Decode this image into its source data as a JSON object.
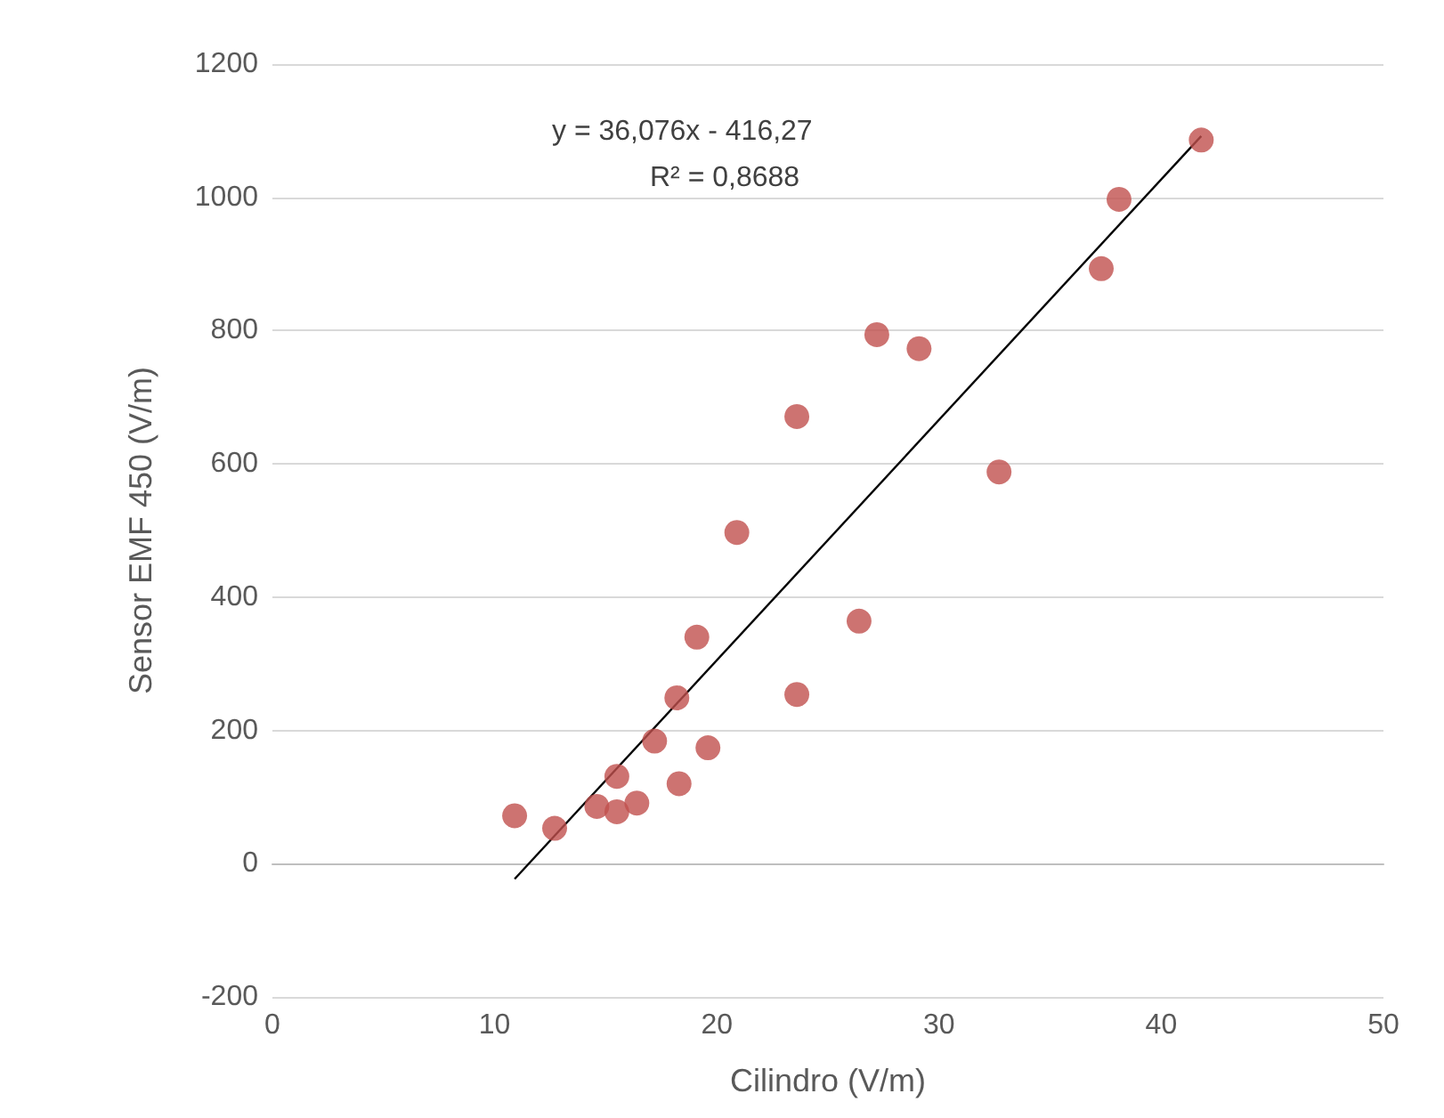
{
  "chart_data": {
    "type": "scatter",
    "xlabel": "Cilindro (V/m)",
    "ylabel": "Sensor EMF 450 (V/m)",
    "annotations": [
      "y = 36,076x - 416,27",
      "R² = 0,8688"
    ],
    "xlim": [
      0,
      50
    ],
    "xticks": [
      0,
      10,
      20,
      30,
      40,
      50
    ],
    "ylim": [
      -200,
      1200
    ],
    "yticks": [
      -200,
      0,
      200,
      400,
      600,
      800,
      1000,
      1200
    ],
    "grid": "y",
    "marker": "circle",
    "series": [
      {
        "color": "#c0504d",
        "x": [
          10.9,
          12.7,
          14.6,
          15.5,
          15.5,
          16.4,
          17.2,
          18.2,
          18.3,
          19.1,
          19.6,
          20.9,
          23.6,
          23.6,
          26.4,
          27.2,
          29.1,
          32.7,
          37.3,
          38.1,
          41.8
        ],
        "values": [
          72,
          53,
          86,
          131,
          78,
          91,
          184,
          249,
          120,
          340,
          174,
          497,
          671,
          254,
          364,
          794,
          773,
          588,
          893,
          997,
          1086
        ]
      },
      {
        "type": "line",
        "color": "#000000",
        "marker": "none",
        "x": [
          10.9,
          41.8
        ],
        "values": [
          -23,
          1092
        ]
      }
    ]
  }
}
